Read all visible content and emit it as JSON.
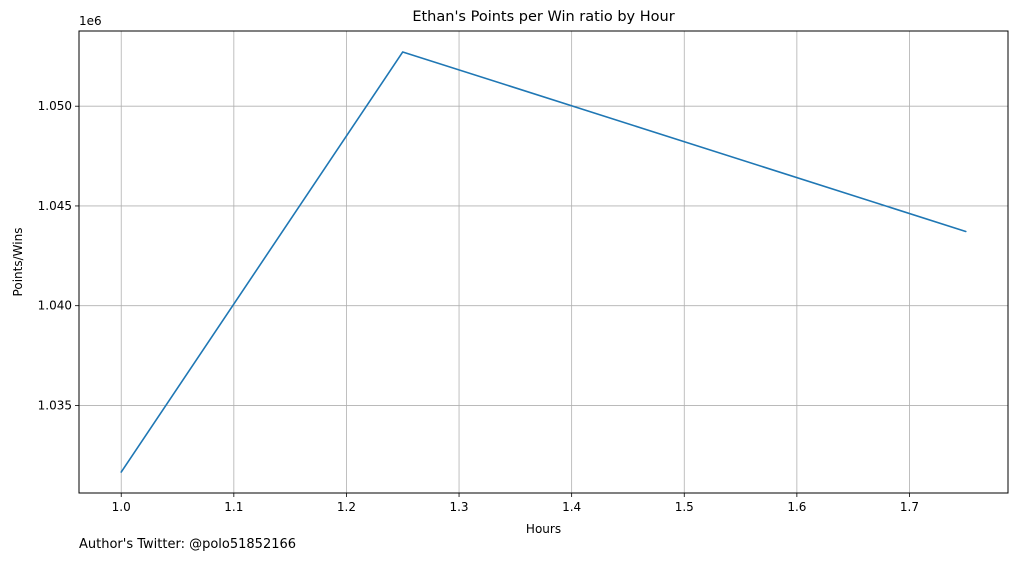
{
  "chart_data": {
    "type": "line",
    "title": "Ethan's Points per Win ratio by Hour",
    "xlabel": "Hours",
    "ylabel": "Points/Wins",
    "y_offset_label": "1e6",
    "y_scale": 1000000,
    "x_ticks": [
      1.0,
      1.1,
      1.2,
      1.3,
      1.4,
      1.5,
      1.6,
      1.7
    ],
    "x_tick_labels": [
      "1.0",
      "1.1",
      "1.2",
      "1.3",
      "1.4",
      "1.5",
      "1.6",
      "1.7"
    ],
    "y_ticks": [
      1035000,
      1040000,
      1045000,
      1050000
    ],
    "y_tick_labels": [
      "1.035",
      "1.040",
      "1.045",
      "1.050"
    ],
    "xlim": [
      0.9625,
      1.7875
    ],
    "ylim": [
      1030610,
      1053770
    ],
    "grid": true,
    "series": [
      {
        "color": "#1f77b4",
        "x": [
          1.0,
          1.25,
          1.75
        ],
        "y": [
          1031660,
          1052720,
          1043720
        ]
      }
    ]
  },
  "footnote": "Author's Twitter: @polo51852166"
}
